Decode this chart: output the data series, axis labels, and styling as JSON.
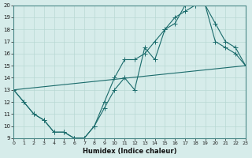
{
  "xlabel": "Humidex (Indice chaleur)",
  "xlim": [
    0,
    23
  ],
  "ylim": [
    9,
    20
  ],
  "yticks": [
    9,
    10,
    11,
    12,
    13,
    14,
    15,
    16,
    17,
    18,
    19,
    20
  ],
  "xticks": [
    0,
    1,
    2,
    3,
    4,
    5,
    6,
    7,
    8,
    9,
    10,
    11,
    12,
    13,
    14,
    15,
    16,
    17,
    18,
    19,
    20,
    21,
    22,
    23
  ],
  "bg_color": "#d6ecea",
  "grid_color": "#b8d8d4",
  "line_color": "#1a6b6b",
  "line1_x": [
    0,
    1,
    2,
    3,
    4,
    5,
    6,
    7,
    8,
    9,
    10,
    11,
    12,
    13,
    14,
    15,
    16,
    17,
    18,
    19,
    20,
    21,
    22,
    23
  ],
  "line1_y": [
    13,
    12,
    11,
    10.5,
    9.5,
    9.5,
    9,
    9,
    10,
    11.5,
    13,
    14,
    13,
    16.5,
    15.5,
    18,
    19,
    19.5,
    20,
    20,
    17,
    16.5,
    16,
    15
  ],
  "line2_x": [
    0,
    1,
    2,
    3,
    4,
    5,
    6,
    7,
    8,
    9,
    10,
    11,
    12,
    13,
    14,
    15,
    16,
    17,
    18,
    19,
    20,
    21,
    22,
    23
  ],
  "line2_y": [
    13,
    12,
    11,
    10.5,
    9.5,
    9.5,
    9,
    9,
    10,
    12,
    14,
    15.5,
    15.5,
    16,
    17,
    18,
    18.5,
    20,
    20,
    20,
    18.5,
    17,
    16.5,
    15
  ],
  "line3_x": [
    0,
    23
  ],
  "line3_y": [
    13,
    15
  ]
}
